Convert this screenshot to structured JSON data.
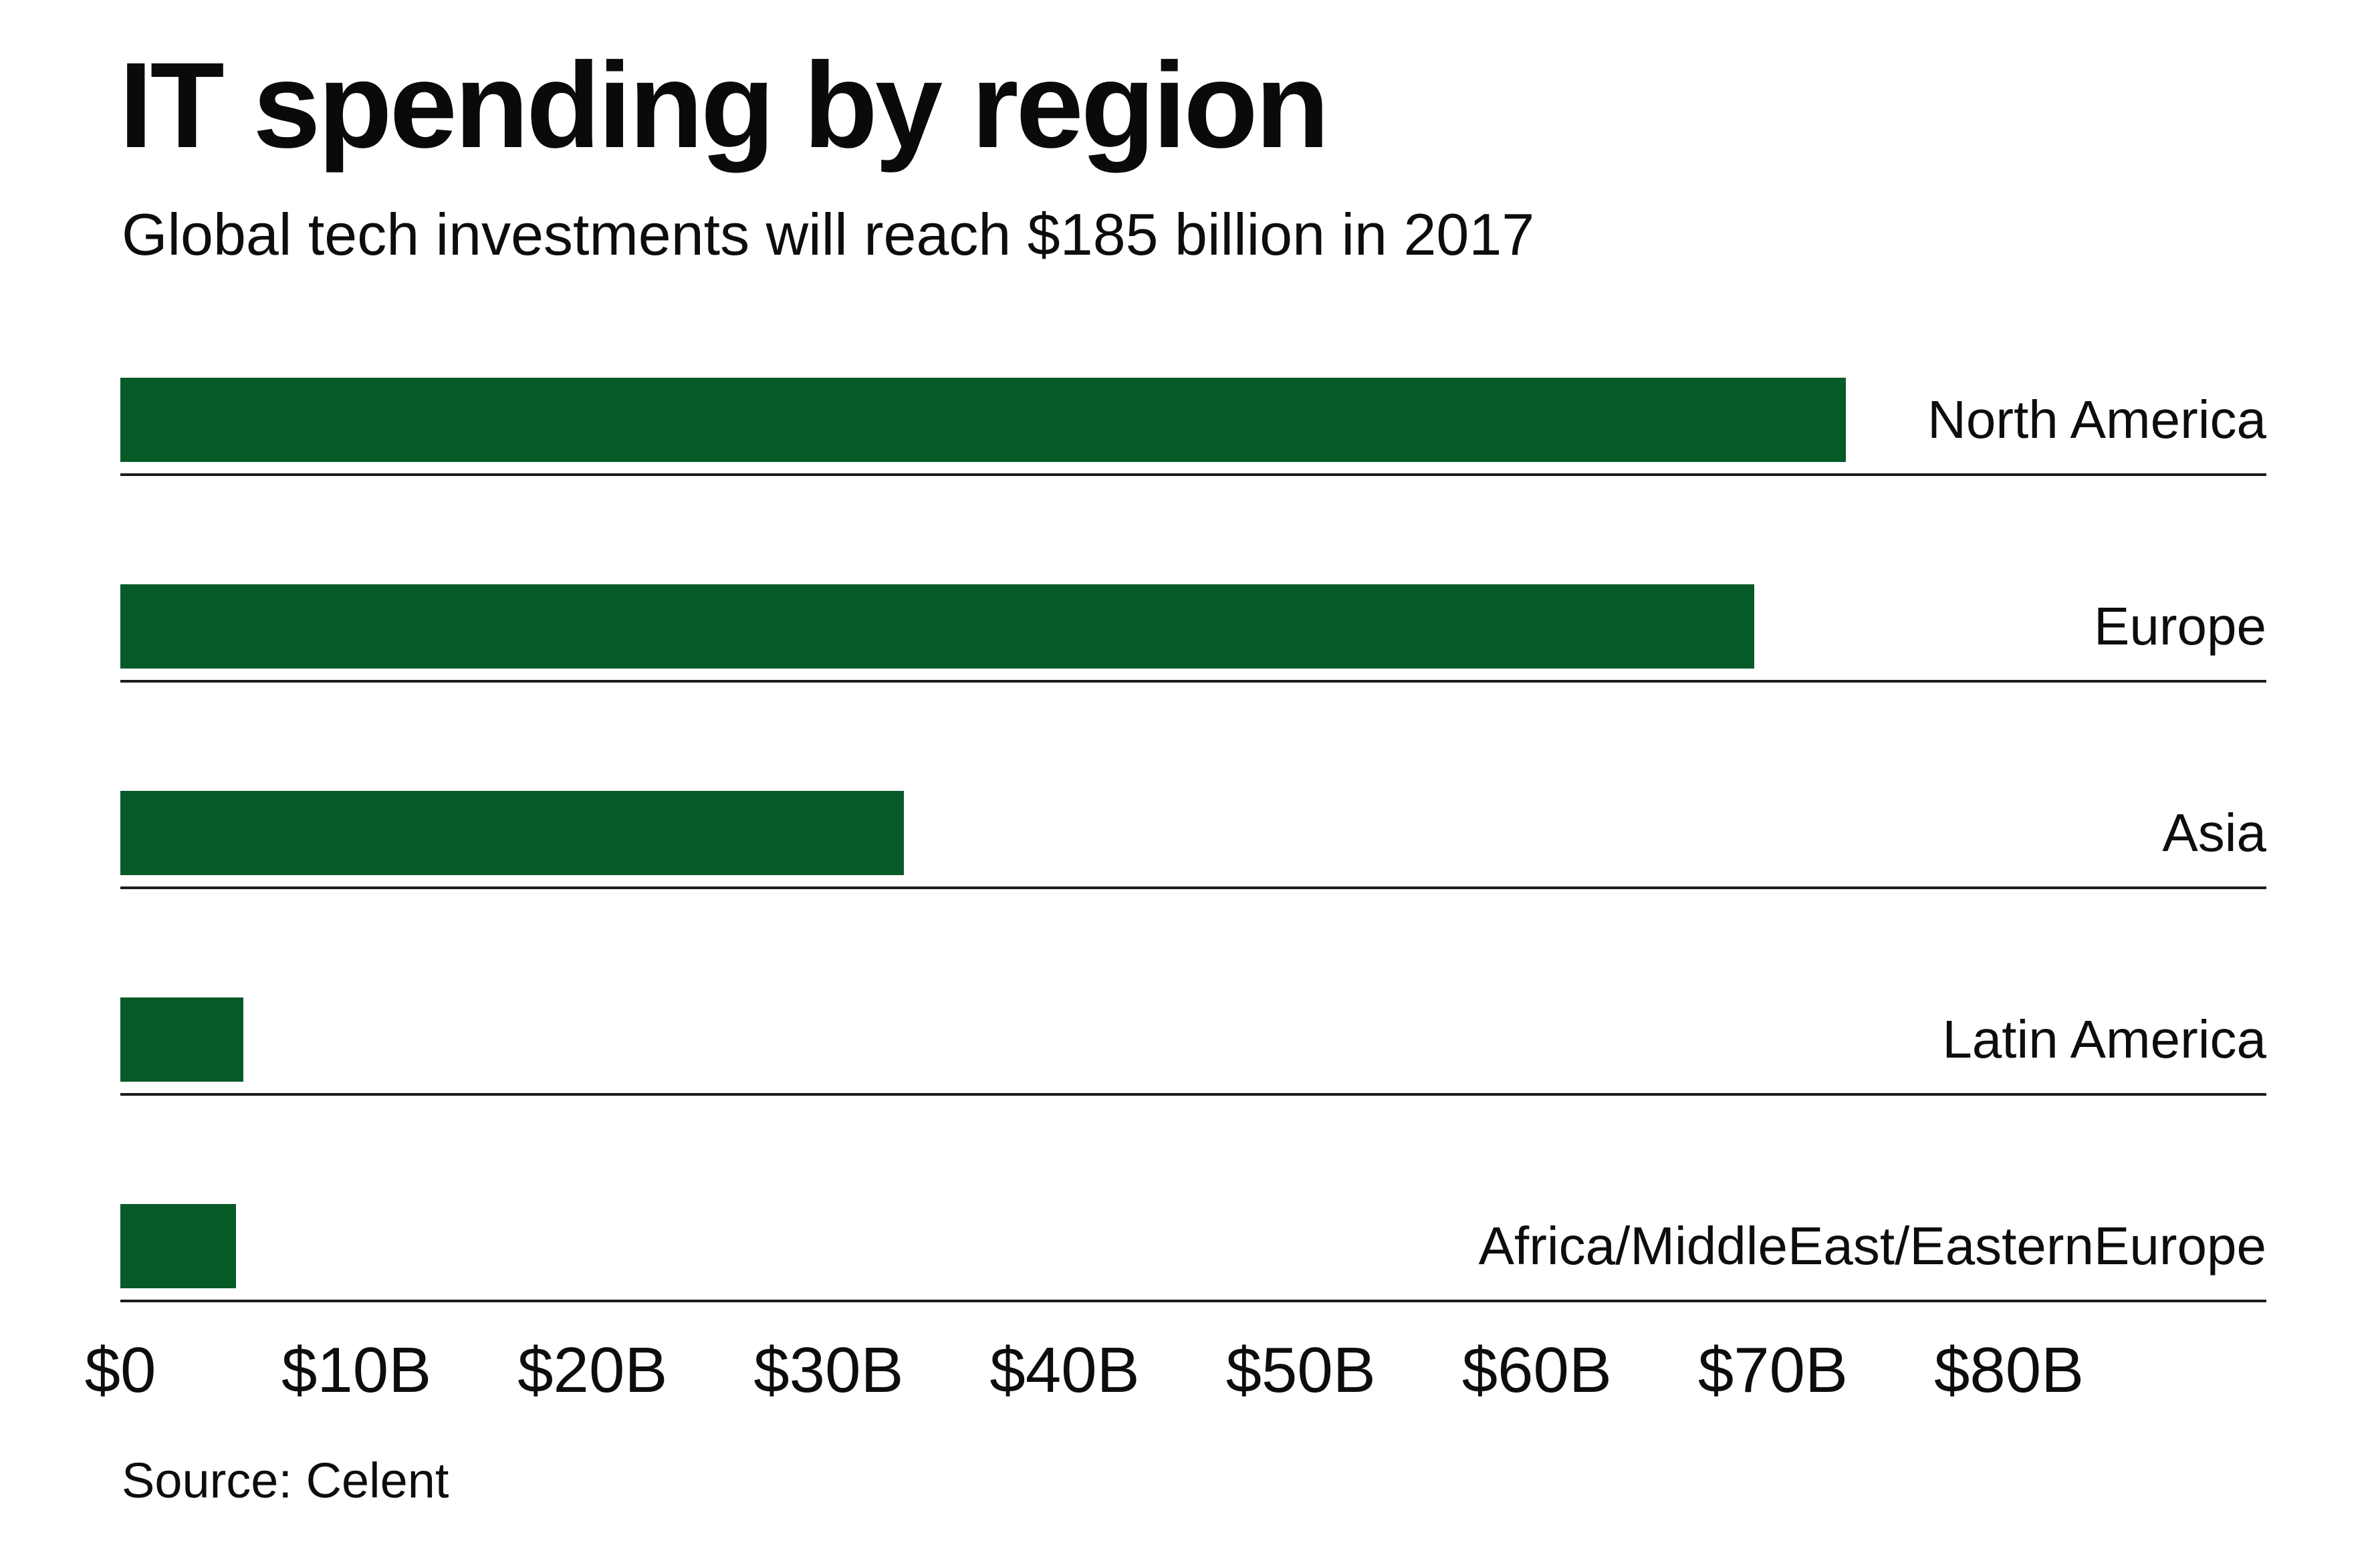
{
  "header": {
    "title": "IT spending by region",
    "subtitle": "Global tech investments will reach $185 billion in 2017"
  },
  "chart_data": {
    "type": "bar",
    "orientation": "horizontal",
    "title": "IT spending by region",
    "subtitle": "Global tech investments will reach $185 billion in 2017",
    "categories": [
      "North America",
      "Europe",
      "Asia",
      "Latin America",
      "Africa/MiddleEast/EasternEurope"
    ],
    "values": [
      73.1,
      69.2,
      33.2,
      5.2,
      4.9
    ],
    "unit": "USD billions",
    "total_annotated": "$185 billion",
    "xlabel": "",
    "ylabel": "",
    "x_ticks": [
      "$0",
      "$10B",
      "$20B",
      "$30B",
      "$40B",
      "$50B",
      "$60B",
      "$70B",
      "$80B"
    ],
    "x_tick_values": [
      0,
      10,
      20,
      30,
      40,
      50,
      60,
      70,
      80
    ],
    "xlim": [
      0,
      90.9
    ],
    "grid": false,
    "legend": false,
    "bar_color": "#055a28",
    "line_color": "#1c1c1c",
    "text_color": "#0d0d0d",
    "background_color": "#ffffff"
  },
  "footer": {
    "source": "Source: Celent"
  }
}
